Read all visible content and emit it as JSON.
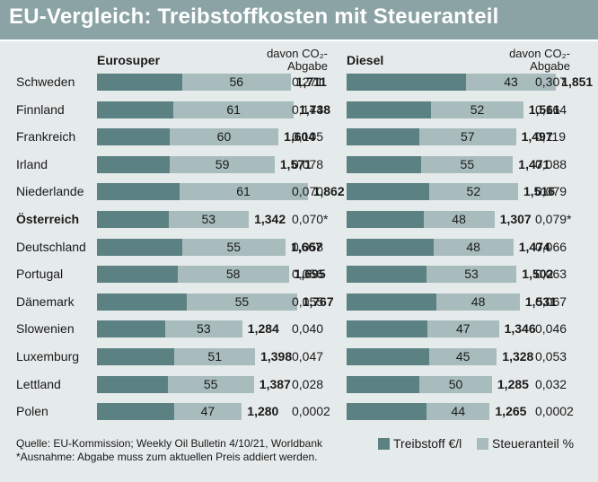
{
  "title": "EU-Vergleich: Treibstoffkosten mit Steueranteil",
  "headers": {
    "eurosuper": "Eurosuper",
    "diesel": "Diesel",
    "co2_line1": "davon CO₂-",
    "co2_line2": "Abgabe"
  },
  "legend": {
    "fuel_label": "Treibstoff €/l",
    "tax_label": "Steueranteil %",
    "fuel_color": "#5b8182",
    "tax_color": "#a8bcbd"
  },
  "footer": {
    "source": "Quelle: EU-Kommission; Weekly Oil Bulletin 4/10/21, Worldbank",
    "note": "*Ausnahme: Abgabe muss zum aktuellen Preis addiert werden."
  },
  "chart_data": {
    "type": "bar",
    "stacked": true,
    "bar_scale_max": 2.0,
    "countries": [
      "Schweden",
      "Finnland",
      "Frankreich",
      "Irland",
      "Niederlande",
      "Österreich",
      "Deutschland",
      "Portugal",
      "Dänemark",
      "Slowenien",
      "Luxemburg",
      "Lettland",
      "Polen"
    ],
    "highlight": "Österreich",
    "eurosuper": {
      "price": [
        "1,711",
        "1,738",
        "1,604",
        "1,571",
        "1,862",
        "1,342",
        "1,667",
        "1,695",
        "1,767",
        "1,284",
        "1,398",
        "1,387",
        "1,280"
      ],
      "tax_pct": [
        56,
        61,
        60,
        59,
        61,
        53,
        55,
        58,
        55,
        53,
        51,
        55,
        47
      ],
      "co2": [
        "0,271",
        "0,144",
        "0,105",
        "0,078",
        "0,070",
        "0,070*",
        "0,058",
        "0,056",
        "0,055",
        "0,040",
        "0,047",
        "0,028",
        "0,0002"
      ]
    },
    "diesel": {
      "price": [
        "1,851",
        "1,561",
        "1,497",
        "1,471",
        "1,516",
        "1,307",
        "1,474",
        "1,502",
        "1,531",
        "1,346",
        "1,328",
        "1,285",
        "1,265"
      ],
      "tax_pct": [
        43,
        52,
        57,
        55,
        52,
        48,
        48,
        53,
        48,
        47,
        45,
        50,
        44
      ],
      "co2": [
        "0,307",
        "0,164",
        "0,119",
        "0,088",
        "0,079",
        "0,079*",
        "0,066",
        "0,063",
        "0,067",
        "0,046",
        "0,053",
        "0,032",
        "0,0002"
      ]
    }
  }
}
